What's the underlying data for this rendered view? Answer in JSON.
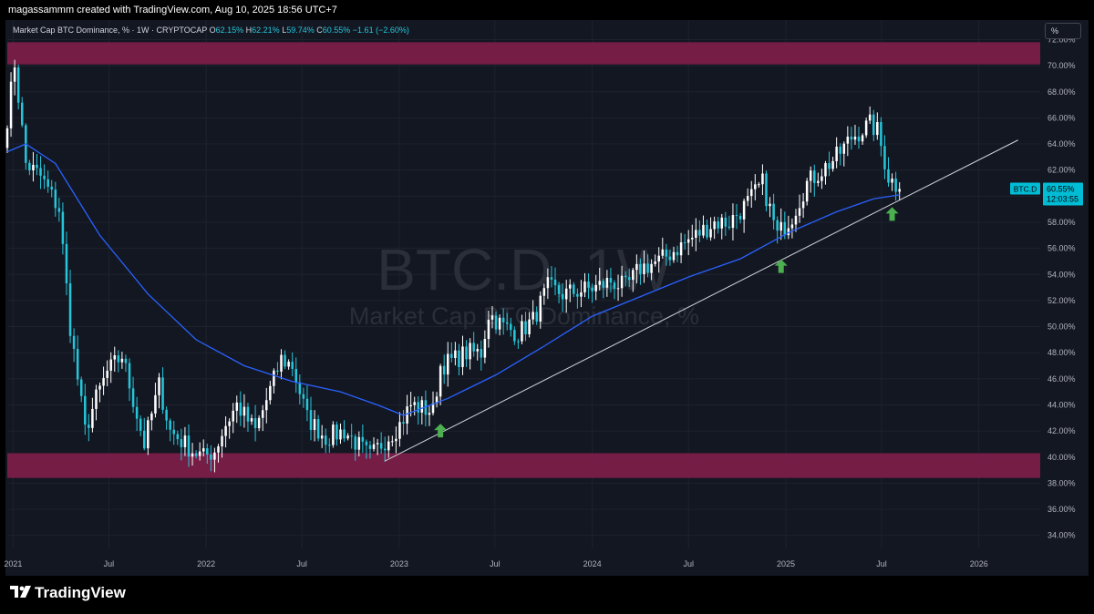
{
  "header": {
    "attribution": "magassammm created with TradingView.com, Aug 10, 2025 18:56 UTC+7"
  },
  "legend": {
    "title": "Market Cap BTC Dominance, % · 1W · CRYPTOCAP",
    "open_label": "O",
    "open": "62.15%",
    "high_label": "H",
    "high": "62.21%",
    "low_label": "L",
    "low": "59.74%",
    "close_label": "C",
    "close": "60.55%",
    "change": "−1.61 (−2.60%)"
  },
  "scale_button": "%",
  "watermark": {
    "symbol": "BTC.D, 1W",
    "name": "Market Cap BTC Dominance, %"
  },
  "price_tag": {
    "symbol": "BTC.D",
    "value": "60.55%",
    "countdown": "12:03:55"
  },
  "footer": {
    "brand": "TradingView"
  },
  "colors": {
    "background": "#131722",
    "up": "#ffffff",
    "down": "#26c6da",
    "ma": "#2962ff",
    "zone": "#7a1e48",
    "trendline": "#d1d4dc",
    "arrow": "#4caf50",
    "tag": "#00bcd4"
  },
  "chart_data": {
    "type": "candlestick",
    "title": "Market Cap BTC Dominance, %",
    "timeframe": "1W",
    "ylim": [
      33,
      73.5
    ],
    "xlim": [
      "2020-12-21",
      "2026-04-27"
    ],
    "y_ticks": [
      "34.00%",
      "36.00%",
      "38.00%",
      "40.00%",
      "42.00%",
      "44.00%",
      "46.00%",
      "48.00%",
      "50.00%",
      "52.00%",
      "54.00%",
      "56.00%",
      "58.00%",
      "60.00%",
      "62.00%",
      "64.00%",
      "66.00%",
      "68.00%",
      "70.00%",
      "72.00%"
    ],
    "x_ticks": [
      {
        "date": "2021-01-01",
        "label": "2021"
      },
      {
        "date": "2021-07-01",
        "label": "Jul"
      },
      {
        "date": "2022-01-01",
        "label": "2022"
      },
      {
        "date": "2022-07-01",
        "label": "Jul"
      },
      {
        "date": "2023-01-01",
        "label": "2023"
      },
      {
        "date": "2023-07-01",
        "label": "Jul"
      },
      {
        "date": "2024-01-01",
        "label": "2024"
      },
      {
        "date": "2024-07-01",
        "label": "Jul"
      },
      {
        "date": "2025-01-01",
        "label": "2025"
      },
      {
        "date": "2025-07-01",
        "label": "Jul"
      },
      {
        "date": "2026-01-01",
        "label": "2026"
      }
    ],
    "close_series": [
      [
        "2020-12-21",
        66.0
      ],
      [
        "2021-01-04",
        70.2
      ],
      [
        "2021-01-25",
        62.5
      ],
      [
        "2021-02-22",
        61.5
      ],
      [
        "2021-03-29",
        59.0
      ],
      [
        "2021-04-19",
        50.0
      ],
      [
        "2021-05-17",
        42.0
      ],
      [
        "2021-06-07",
        44.5
      ],
      [
        "2021-06-28",
        46.5
      ],
      [
        "2021-07-26",
        47.8
      ],
      [
        "2021-09-06",
        41.0
      ],
      [
        "2021-10-04",
        45.5
      ],
      [
        "2021-10-25",
        42.0
      ],
      [
        "2021-12-06",
        40.5
      ],
      [
        "2021-12-27",
        40.0
      ],
      [
        "2022-01-17",
        40.5
      ],
      [
        "2022-02-07",
        42.5
      ],
      [
        "2022-02-28",
        44.0
      ],
      [
        "2022-04-04",
        42.0
      ],
      [
        "2022-05-23",
        47.5
      ],
      [
        "2022-06-13",
        47.0
      ],
      [
        "2022-07-11",
        43.0
      ],
      [
        "2022-08-15",
        41.5
      ],
      [
        "2022-09-19",
        42.0
      ],
      [
        "2022-11-07",
        40.0
      ],
      [
        "2022-11-28",
        41.0
      ],
      [
        "2023-01-02",
        42.5
      ],
      [
        "2023-01-23",
        44.0
      ],
      [
        "2023-03-06",
        43.5
      ],
      [
        "2023-03-20",
        47.0
      ],
      [
        "2023-04-17",
        47.5
      ],
      [
        "2023-05-08",
        48.0
      ],
      [
        "2023-06-05",
        48.0
      ],
      [
        "2023-06-19",
        51.0
      ],
      [
        "2023-07-17",
        50.0
      ],
      [
        "2023-08-14",
        49.5
      ],
      [
        "2023-09-11",
        50.5
      ],
      [
        "2023-10-09",
        53.0
      ],
      [
        "2023-11-06",
        52.5
      ],
      [
        "2024-01-08",
        53.0
      ],
      [
        "2024-02-05",
        53.5
      ],
      [
        "2024-03-04",
        53.0
      ],
      [
        "2024-04-01",
        54.5
      ],
      [
        "2024-05-06",
        55.0
      ],
      [
        "2024-06-10",
        56.0
      ],
      [
        "2024-07-15",
        57.0
      ],
      [
        "2024-08-19",
        58.0
      ],
      [
        "2024-09-16",
        58.0
      ],
      [
        "2024-10-21",
        59.5
      ],
      [
        "2024-11-18",
        61.0
      ],
      [
        "2024-12-16",
        57.0
      ],
      [
        "2025-01-13",
        58.5
      ],
      [
        "2025-02-10",
        61.0
      ],
      [
        "2025-03-10",
        62.0
      ],
      [
        "2025-04-07",
        63.0
      ],
      [
        "2025-05-05",
        64.5
      ],
      [
        "2025-06-09",
        65.5
      ],
      [
        "2025-06-23",
        65.0
      ],
      [
        "2025-07-14",
        61.5
      ],
      [
        "2025-08-04",
        60.55
      ]
    ],
    "moving_average": [
      [
        "2020-12-21",
        63.4
      ],
      [
        "2021-01-25",
        64.0
      ],
      [
        "2021-03-22",
        62.5
      ],
      [
        "2021-06-14",
        57.0
      ],
      [
        "2021-09-13",
        52.5
      ],
      [
        "2021-12-13",
        49.0
      ],
      [
        "2022-03-14",
        47.0
      ],
      [
        "2022-06-13",
        45.8
      ],
      [
        "2022-09-12",
        45.0
      ],
      [
        "2022-11-21",
        44.0
      ],
      [
        "2023-01-09",
        43.2
      ],
      [
        "2023-04-03",
        44.5
      ],
      [
        "2023-07-03",
        46.3
      ],
      [
        "2023-10-02",
        48.5
      ],
      [
        "2024-01-01",
        50.8
      ],
      [
        "2024-04-01",
        52.3
      ],
      [
        "2024-07-01",
        53.8
      ],
      [
        "2024-10-07",
        55.2
      ],
      [
        "2025-01-06",
        57.2
      ],
      [
        "2025-04-07",
        58.8
      ],
      [
        "2025-06-16",
        59.8
      ],
      [
        "2025-08-04",
        60.1
      ]
    ],
    "trendline": {
      "from": [
        "2022-12-05",
        39.7
      ],
      "to": [
        "2026-03-16",
        64.3
      ]
    },
    "zones": [
      {
        "from": 70.1,
        "to": 71.8,
        "label": ""
      },
      {
        "from": 38.4,
        "to": 40.3,
        "label": ""
      }
    ],
    "markers": [
      {
        "date": "2023-03-20",
        "value": 42.0,
        "shape": "arrow-up"
      },
      {
        "date": "2024-12-23",
        "value": 54.6,
        "shape": "arrow-up"
      },
      {
        "date": "2025-07-21",
        "value": 58.6,
        "shape": "arrow-up"
      }
    ],
    "last_close": 60.55
  }
}
